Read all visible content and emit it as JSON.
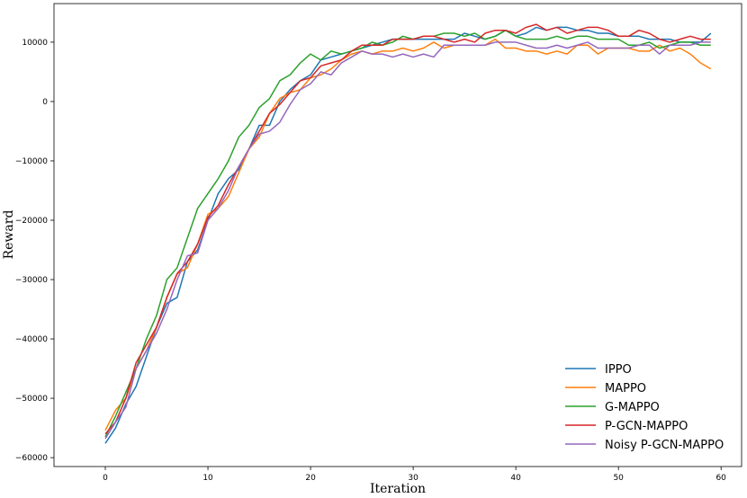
{
  "chart_data": {
    "type": "line",
    "xlabel": "Iteration",
    "ylabel": "Reward",
    "xlim": [
      -5,
      62
    ],
    "ylim": [
      -61500,
      16500
    ],
    "xticks": [
      0,
      10,
      20,
      30,
      40,
      50,
      60
    ],
    "yticks": [
      -60000,
      -50000,
      -40000,
      -30000,
      -20000,
      -10000,
      0,
      10000
    ],
    "grid": false,
    "legend_position": "bottom-right",
    "series": [
      {
        "name": "IPPO",
        "color": "#1f77b4",
        "values": [
          -57600,
          -55000,
          -51000,
          -48000,
          -43000,
          -38000,
          -34000,
          -33000,
          -27000,
          -25000,
          -20000,
          -15500,
          -13000,
          -11500,
          -8000,
          -4000,
          -4000,
          0,
          2000,
          3500,
          4500,
          7000,
          7500,
          8000,
          8500,
          9000,
          9500,
          10000,
          10500,
          10500,
          10500,
          10500,
          10500,
          10500,
          10500,
          11500,
          11000,
          10500,
          11000,
          12000,
          11000,
          11500,
          12500,
          12000,
          12500,
          12500,
          12000,
          12000,
          11500,
          11500,
          11000,
          11000,
          11000,
          10500,
          10500,
          10500,
          10000,
          10000,
          10000,
          11500
        ]
      },
      {
        "name": "MAPPO",
        "color": "#ff7f0e",
        "values": [
          -55400,
          -52000,
          -50000,
          -45000,
          -42000,
          -38000,
          -33000,
          -29000,
          -28000,
          -24000,
          -19000,
          -18000,
          -16000,
          -12000,
          -8000,
          -6000,
          -2000,
          500,
          1500,
          2000,
          4000,
          4500,
          5500,
          7000,
          8000,
          8500,
          8000,
          8500,
          8500,
          9000,
          8500,
          9000,
          10000,
          9000,
          9500,
          9500,
          9500,
          9500,
          10500,
          9000,
          9000,
          8500,
          8500,
          8000,
          8500,
          8000,
          9500,
          9500,
          8000,
          9000,
          9000,
          9000,
          8500,
          8500,
          9500,
          8500,
          9000,
          8000,
          6500,
          5500
        ]
      },
      {
        "name": "G-MAPPO",
        "color": "#2ca02c",
        "values": [
          -56500,
          -53000,
          -49000,
          -45000,
          -40000,
          -36000,
          -30000,
          -28000,
          -23000,
          -18000,
          -15500,
          -13000,
          -10000,
          -6000,
          -4000,
          -1000,
          500,
          3500,
          4500,
          6500,
          8000,
          7000,
          8500,
          8000,
          8500,
          9000,
          10000,
          9500,
          10000,
          11000,
          10500,
          11000,
          11000,
          11500,
          11500,
          11000,
          11500,
          10500,
          11000,
          12000,
          11000,
          10500,
          10500,
          10500,
          11000,
          10500,
          11000,
          11000,
          10500,
          10500,
          10500,
          9500,
          9500,
          10000,
          9000,
          9500,
          10000,
          10000,
          9500,
          9500
        ]
      },
      {
        "name": "P-GCN-MAPPO",
        "color": "#d62728",
        "values": [
          -56000,
          -54000,
          -50000,
          -44000,
          -41000,
          -38000,
          -33000,
          -29000,
          -27000,
          -24000,
          -19500,
          -17500,
          -14000,
          -11000,
          -8000,
          -5000,
          -2000,
          -500,
          1500,
          3500,
          4000,
          6000,
          6500,
          7000,
          8500,
          9500,
          9500,
          9500,
          10500,
          10500,
          10500,
          11000,
          11000,
          10500,
          10000,
          10500,
          10000,
          11500,
          12000,
          12000,
          11500,
          12500,
          13000,
          12000,
          12500,
          11500,
          12000,
          12500,
          12500,
          12000,
          11000,
          11000,
          12000,
          11500,
          10500,
          10000,
          10500,
          11000,
          10500,
          10500
        ]
      },
      {
        "name": "Noisy P-GCN-MAPPO",
        "color": "#9467bd",
        "values": [
          -56800,
          -54000,
          -51500,
          -45000,
          -42000,
          -39000,
          -35000,
          -30000,
          -26000,
          -25500,
          -20000,
          -18000,
          -15000,
          -11000,
          -8000,
          -5500,
          -5000,
          -3500,
          -500,
          2000,
          3000,
          5000,
          4500,
          6500,
          7500,
          8500,
          8000,
          8000,
          7500,
          8000,
          7500,
          8000,
          7500,
          9500,
          9500,
          9500,
          9500,
          9500,
          10000,
          10000,
          10000,
          9500,
          9000,
          9000,
          9500,
          9000,
          9500,
          10000,
          9000,
          9000,
          9000,
          9000,
          9500,
          9500,
          8000,
          9500,
          9500,
          9500,
          10000,
          10000
        ]
      }
    ]
  }
}
